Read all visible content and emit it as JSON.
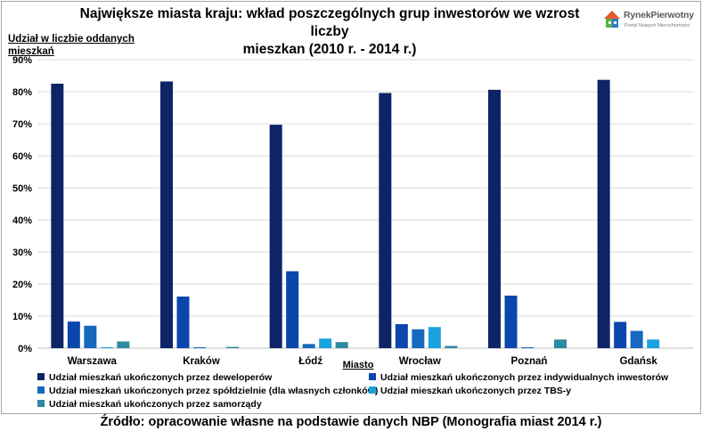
{
  "title_line1": "Największe miasta kraju: wkład poszczególnych grup inwestorów we wzrost liczby",
  "title_line2": "mieszkan (2010 r. - 2014 r.)",
  "logo": {
    "name": "RynekPierwotny",
    "tagline": "Portal Nowych Nieruchomości",
    "icon": "house-logo-icon"
  },
  "source": "Źródło: opracowanie własne na podstawie danych NBP (Monografia miast 2014 r.)",
  "chart_data": {
    "type": "bar",
    "title": "Największe miasta kraju: wkład poszczególnych grup inwestorów we wzrost liczby mieszkan (2010 r. - 2014 r.)",
    "ylabel": "Udział w liczbie oddanych mieszkań",
    "xlabel": "Miasto",
    "ylim": [
      0,
      90
    ],
    "yticks": [
      "0%",
      "10%",
      "20%",
      "30%",
      "40%",
      "50%",
      "60%",
      "70%",
      "80%",
      "90%"
    ],
    "grid": true,
    "legend_position": "bottom",
    "categories": [
      "Warszawa",
      "Kraków",
      "Łódź",
      "Wrocław",
      "Poznań",
      "Gdańsk"
    ],
    "series": [
      {
        "name": "Udział mieszkań ukończonych przez deweloperów",
        "color": "#0d2466",
        "values": [
          82.5,
          83.2,
          69.7,
          79.6,
          80.6,
          83.7
        ]
      },
      {
        "name": "Udział mieszkań ukończonych przez indywidualnych inwestorów",
        "color": "#0b46ad",
        "values": [
          8.3,
          16.1,
          24.0,
          7.5,
          16.4,
          8.2
        ]
      },
      {
        "name": "Udział mieszkań ukończonych przez spółdzielnie (dla własnych członków)",
        "color": "#1669bf",
        "values": [
          7.0,
          0.3,
          1.3,
          5.9,
          0.3,
          5.4
        ]
      },
      {
        "name": "Udział mieszkań ukończonych przez TBS-y",
        "color": "#1aa3e0",
        "values": [
          0.3,
          0.0,
          3.0,
          6.6,
          0.0,
          2.7
        ]
      },
      {
        "name": "Udział mieszkań ukończonych przez samorządy",
        "color": "#2e8aa0",
        "values": [
          2.1,
          0.4,
          1.9,
          0.7,
          2.7,
          0.0
        ]
      }
    ]
  }
}
